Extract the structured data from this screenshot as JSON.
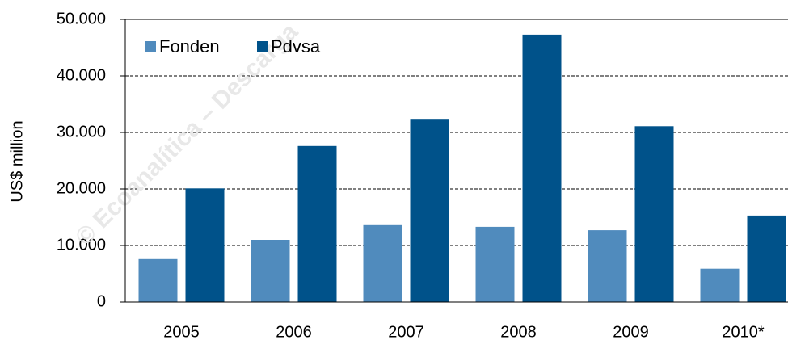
{
  "chart_data": {
    "type": "bar",
    "y_label": "US$ million",
    "annotation": "© Ecoanalítica – Descarga",
    "categories": [
      "2005",
      "2006",
      "2007",
      "2008",
      "2009",
      "2010*"
    ],
    "series": [
      {
        "name": "Fonden",
        "color": "#508bbd",
        "values": [
          7600,
          11000,
          13600,
          13300,
          12700,
          5900
        ]
      },
      {
        "name": "Pdvsa",
        "color": "#00528a",
        "values": [
          20100,
          27600,
          32400,
          47300,
          31100,
          15300
        ]
      }
    ],
    "ylim": [
      0,
      50000
    ],
    "yticks": [
      0,
      {
        "value": 10000,
        "label": "10.000"
      },
      {
        "value": 20000,
        "label": "20.000"
      },
      {
        "value": 30000,
        "label": "30.000"
      },
      {
        "value": 40000,
        "label": "40.000"
      },
      {
        "value": 50000,
        "label": "50.000"
      }
    ],
    "grid": true,
    "legend": "top-left"
  }
}
